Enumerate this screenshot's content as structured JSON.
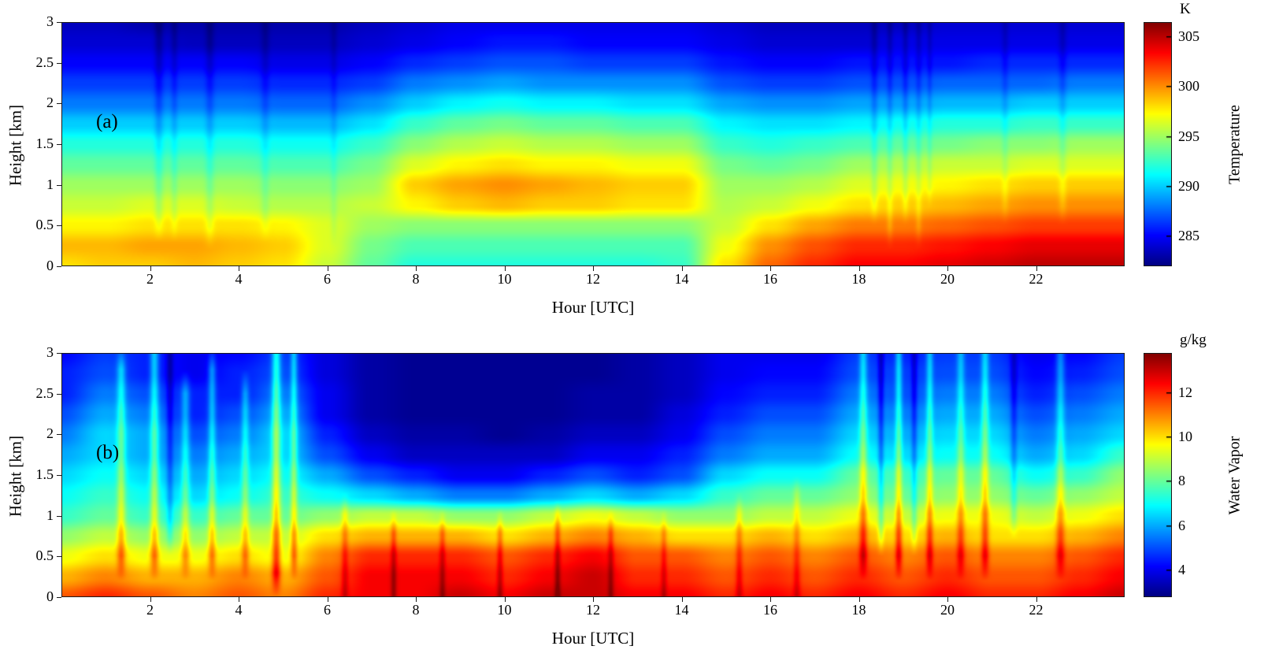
{
  "chart_data": [
    {
      "type": "heatmap",
      "panel_label": "(a)",
      "xlabel": "Hour [UTC]",
      "ylabel": "Height [km]",
      "x_range": [
        0,
        24
      ],
      "y_range": [
        0,
        3
      ],
      "x_ticks": [
        2,
        4,
        6,
        8,
        10,
        12,
        14,
        16,
        18,
        20,
        22
      ],
      "y_ticks": [
        0,
        0.5,
        1,
        1.5,
        2,
        2.5,
        3
      ],
      "colormap": "jet",
      "colorbar": {
        "unit": "K",
        "label": "Temperature",
        "ticks": [
          285,
          290,
          295,
          300,
          305
        ],
        "vmin": 282,
        "vmax": 306.5
      },
      "x": [
        0,
        1,
        2,
        3,
        4,
        5,
        6,
        7,
        8,
        9,
        10,
        11,
        12,
        13,
        14,
        15,
        16,
        17,
        18,
        19,
        20,
        21,
        22,
        23,
        24
      ],
      "y": [
        0,
        0.25,
        0.5,
        0.75,
        1,
        1.25,
        1.5,
        1.75,
        2,
        2.25,
        2.5,
        2.75,
        3
      ],
      "values": [
        [
          298,
          298.5,
          298.5,
          299,
          298.5,
          298,
          296,
          293.5,
          292,
          292,
          292,
          292,
          292,
          292,
          292.5,
          298,
          301,
          302.5,
          303.5,
          303.5,
          304,
          304.5,
          305,
          305,
          305
        ],
        [
          299,
          299,
          299.5,
          299.5,
          299,
          298.5,
          296.5,
          294,
          293,
          293,
          293,
          293,
          293,
          293,
          293,
          297,
          300,
          301.5,
          302.5,
          302.5,
          303,
          303.5,
          304,
          304,
          304
        ],
        [
          297.5,
          297.5,
          298,
          298,
          298,
          297.5,
          296.5,
          295,
          294.5,
          294.5,
          294.5,
          294.5,
          294.5,
          294.5,
          294.5,
          296,
          298,
          299.5,
          300.5,
          300.5,
          301,
          301.5,
          302,
          302,
          302
        ],
        [
          296,
          296,
          296.5,
          296.5,
          296,
          295.5,
          295.5,
          296,
          297.5,
          298.5,
          299,
          298.5,
          298.5,
          298,
          298,
          295.5,
          296,
          297,
          298,
          298.5,
          299,
          299.5,
          300,
          300,
          300
        ],
        [
          295,
          295,
          295,
          295,
          295,
          294.5,
          294.5,
          295,
          298.5,
          299.5,
          300,
          299.5,
          299,
          298.5,
          298.5,
          295,
          295,
          295.5,
          296.5,
          297,
          297.5,
          298,
          298.5,
          298.5,
          298.5
        ],
        [
          293.5,
          293.5,
          293.5,
          293.5,
          293.5,
          293,
          293,
          294,
          296.5,
          297.5,
          298,
          297.5,
          297.5,
          297,
          297,
          294,
          293.5,
          294,
          295,
          295.5,
          296,
          296,
          296.5,
          296.5,
          296.5
        ],
        [
          292,
          292,
          292,
          292,
          292,
          291.5,
          291.5,
          292.5,
          294.5,
          295.5,
          296,
          295.5,
          295.5,
          295,
          295,
          292.5,
          292,
          292.5,
          293,
          293.5,
          294,
          294.5,
          294.5,
          295,
          295
        ],
        [
          290,
          290,
          290,
          290,
          290,
          289.5,
          289.5,
          290.5,
          292.5,
          293.5,
          294,
          293.5,
          293.5,
          293,
          293,
          291,
          290.5,
          290.5,
          291,
          291.5,
          292,
          292,
          292.5,
          292.5,
          292.5
        ],
        [
          288,
          288,
          288,
          288,
          288,
          287.5,
          287.5,
          288.5,
          290,
          291,
          291.5,
          291,
          291,
          290.5,
          290.5,
          289,
          288.5,
          288.5,
          289,
          289,
          289.5,
          289.5,
          290,
          290,
          290
        ],
        [
          286.5,
          286.5,
          286.5,
          286.5,
          286.5,
          286,
          286,
          286.5,
          288,
          288.5,
          289,
          288.5,
          288.5,
          288.5,
          288.5,
          287,
          286.5,
          286.5,
          287,
          287,
          287.5,
          287.5,
          287.5,
          288,
          288
        ],
        [
          285,
          285,
          285,
          285,
          285,
          284.5,
          284.5,
          285,
          286,
          286.5,
          287,
          287,
          286.5,
          286.5,
          286.5,
          285.5,
          285,
          285,
          285.5,
          285.5,
          285.5,
          286,
          286,
          286,
          286
        ],
        [
          284,
          284,
          284,
          283.5,
          283.5,
          283.5,
          283.5,
          284,
          284.5,
          285,
          285.5,
          285.5,
          285,
          285,
          285,
          284.5,
          284,
          284,
          284,
          284.5,
          284.5,
          284.5,
          284.5,
          284.5,
          284.5
        ],
        [
          283.5,
          283.5,
          283,
          283,
          283,
          283,
          283,
          283.5,
          284,
          284.5,
          284.5,
          284.5,
          284.5,
          284.5,
          284.5,
          284,
          283.5,
          283.5,
          283.5,
          283.5,
          284,
          284,
          284,
          284,
          284
        ]
      ],
      "streaks": [
        {
          "t": 2.2,
          "w": 0.1,
          "amp": -1.3,
          "h0": 0.6,
          "h1": 3
        },
        {
          "t": 2.55,
          "w": 0.08,
          "amp": -0.9,
          "h0": 0.6,
          "h1": 3
        },
        {
          "t": 3.35,
          "w": 0.1,
          "amp": -1.1,
          "h0": 0.5,
          "h1": 3
        },
        {
          "t": 4.6,
          "w": 0.1,
          "amp": -0.9,
          "h0": 0.6,
          "h1": 3
        },
        {
          "t": 6.15,
          "w": 0.08,
          "amp": -0.7,
          "h0": 0.5,
          "h1": 3
        },
        {
          "t": 18.35,
          "w": 0.08,
          "amp": -1.2,
          "h0": 0.8,
          "h1": 3
        },
        {
          "t": 18.7,
          "w": 0.07,
          "amp": -1.0,
          "h0": 0.5,
          "h1": 3
        },
        {
          "t": 19.05,
          "w": 0.07,
          "amp": -1.1,
          "h0": 0.8,
          "h1": 3
        },
        {
          "t": 19.35,
          "w": 0.07,
          "amp": -0.9,
          "h0": 0.5,
          "h1": 3
        },
        {
          "t": 19.6,
          "w": 0.06,
          "amp": -0.8,
          "h0": 1,
          "h1": 3
        },
        {
          "t": 21.3,
          "w": 0.08,
          "amp": -0.8,
          "h0": 0.8,
          "h1": 3
        },
        {
          "t": 22.6,
          "w": 0.09,
          "amp": -1.0,
          "h0": 0.8,
          "h1": 3
        }
      ]
    },
    {
      "type": "heatmap",
      "panel_label": "(b)",
      "xlabel": "Hour [UTC]",
      "ylabel": "Height [km]",
      "x_range": [
        0,
        24
      ],
      "y_range": [
        0,
        3
      ],
      "x_ticks": [
        2,
        4,
        6,
        8,
        10,
        12,
        14,
        16,
        18,
        20,
        22
      ],
      "y_ticks": [
        0,
        0.5,
        1,
        1.5,
        2,
        2.5,
        3
      ],
      "colormap": "jet",
      "colorbar": {
        "unit": "g/kg",
        "label": "Water Vapor",
        "ticks": [
          4,
          6,
          8,
          10,
          12
        ],
        "vmin": 2.8,
        "vmax": 13.8
      },
      "x": [
        0,
        1,
        2,
        3,
        4,
        5,
        6,
        7,
        8,
        9,
        10,
        11,
        12,
        13,
        14,
        15,
        16,
        17,
        18,
        19,
        20,
        21,
        22,
        23,
        24
      ],
      "y": [
        0,
        0.25,
        0.5,
        0.75,
        1,
        1.25,
        1.5,
        1.75,
        2,
        2.25,
        2.5,
        2.75,
        3
      ],
      "values": [
        [
          11.5,
          12,
          11.5,
          11,
          11.5,
          11,
          12,
          12.5,
          12.5,
          13,
          12.5,
          13,
          13,
          12.5,
          12.5,
          12,
          12.5,
          12,
          12.5,
          12,
          12.5,
          12,
          12,
          12.5,
          13
        ],
        [
          10.5,
          11,
          10.5,
          10.5,
          11,
          10.5,
          11.5,
          12.5,
          12.5,
          12.5,
          12,
          12.5,
          13,
          12,
          12,
          11.5,
          12,
          11.5,
          12,
          11.5,
          12,
          11.5,
          11.5,
          12,
          12.5
        ],
        [
          9.5,
          10,
          9.5,
          9.5,
          10,
          9.5,
          11,
          12,
          12,
          12,
          11.5,
          12,
          12.5,
          11.5,
          11.5,
          11,
          11.5,
          11,
          11.5,
          11,
          11.5,
          11,
          11,
          11.5,
          12
        ],
        [
          8.5,
          9,
          8.5,
          8.5,
          9,
          9,
          10,
          10.5,
          10.5,
          10.5,
          10,
          10.5,
          11,
          10.5,
          10,
          10,
          10.5,
          10,
          10.5,
          10,
          10.5,
          10,
          10,
          10.5,
          11
        ],
        [
          7.5,
          8,
          7.5,
          7.5,
          8,
          8,
          8.5,
          9,
          9,
          8.5,
          8.5,
          9,
          9.5,
          9,
          8.5,
          8.5,
          9,
          9,
          9.5,
          9,
          9.5,
          9.5,
          9,
          9.5,
          10
        ],
        [
          7,
          7.5,
          7,
          6.5,
          7,
          7.5,
          7,
          6.5,
          6,
          5.5,
          5.5,
          6,
          6.5,
          6,
          6.5,
          7.5,
          8,
          8,
          8.5,
          8,
          8.5,
          8.5,
          8,
          8.5,
          9
        ],
        [
          6.5,
          7,
          6.5,
          6,
          6.5,
          7,
          6,
          5,
          4.5,
          4,
          4,
          4.5,
          5,
          4.5,
          5,
          6.5,
          7,
          7,
          8,
          7.5,
          8,
          8,
          7,
          7.5,
          8.5
        ],
        [
          6,
          6.5,
          6,
          5.5,
          6,
          6.5,
          5,
          4,
          3.5,
          3.5,
          3.5,
          3.5,
          4,
          4,
          4.5,
          5.5,
          6,
          6,
          7,
          6.5,
          7,
          7,
          6,
          6.5,
          7.5
        ],
        [
          5.5,
          6.5,
          6,
          5,
          5.5,
          6.5,
          4.5,
          3.5,
          3.2,
          3.2,
          3,
          3.2,
          3.5,
          3.5,
          4,
          5,
          5.5,
          5.5,
          6.5,
          6,
          6.5,
          6.5,
          5.5,
          6,
          6.5
        ],
        [
          5,
          6,
          5.5,
          4.5,
          5,
          6,
          4,
          3.2,
          3,
          3,
          3,
          3,
          3.2,
          3.2,
          3.8,
          4.5,
          5,
          5,
          6,
          5.5,
          6,
          6,
          5,
          5.5,
          6
        ],
        [
          4.5,
          5.5,
          5,
          4.5,
          4.5,
          5.5,
          4,
          3.2,
          3,
          3,
          3,
          3,
          3.2,
          3.2,
          3.5,
          4.2,
          4.5,
          4.5,
          5.5,
          5,
          5.5,
          5.5,
          4.5,
          5,
          5.5
        ],
        [
          4.5,
          5,
          4.5,
          4,
          4.5,
          5,
          3.8,
          3.2,
          3,
          3,
          3,
          3,
          3,
          3.2,
          3.5,
          4,
          4.2,
          4.2,
          5,
          4.8,
          5,
          5,
          4.2,
          4.5,
          5
        ],
        [
          4.2,
          4.8,
          4.5,
          4,
          4.2,
          4.8,
          3.8,
          3.2,
          3,
          3,
          3,
          3,
          3,
          3.2,
          3.5,
          4,
          4,
          4,
          4.8,
          4.5,
          4.8,
          4.8,
          4,
          4.2,
          4.8
        ]
      ],
      "streaks": [
        {
          "t": 1.35,
          "w": 0.1,
          "amp": 1.6,
          "h0": 0.5,
          "h1": 2.8
        },
        {
          "t": 2.1,
          "w": 0.1,
          "amp": 1.8,
          "h0": 0.5,
          "h1": 3
        },
        {
          "t": 2.45,
          "w": 0.08,
          "amp": -1.0,
          "h0": 0.8,
          "h1": 3
        },
        {
          "t": 2.8,
          "w": 0.1,
          "amp": 1.4,
          "h0": 0.5,
          "h1": 2.5
        },
        {
          "t": 3.4,
          "w": 0.09,
          "amp": 1.5,
          "h0": 0.5,
          "h1": 2.8
        },
        {
          "t": 4.15,
          "w": 0.09,
          "amp": 1.3,
          "h0": 0.5,
          "h1": 2.5
        },
        {
          "t": 4.85,
          "w": 0.1,
          "amp": 2.2,
          "h0": 0.3,
          "h1": 3
        },
        {
          "t": 5.25,
          "w": 0.08,
          "amp": 1.6,
          "h0": 0.5,
          "h1": 3
        },
        {
          "t": 6.4,
          "w": 0.08,
          "amp": 0.9,
          "h0": 0,
          "h1": 1
        },
        {
          "t": 7.5,
          "w": 0.07,
          "amp": 1.0,
          "h0": 0,
          "h1": 0.8
        },
        {
          "t": 8.6,
          "w": 0.07,
          "amp": 0.9,
          "h0": 0,
          "h1": 0.8
        },
        {
          "t": 9.9,
          "w": 0.07,
          "amp": 1.0,
          "h0": 0,
          "h1": 0.8
        },
        {
          "t": 11.2,
          "w": 0.07,
          "amp": 1.1,
          "h0": 0,
          "h1": 0.9
        },
        {
          "t": 12.4,
          "w": 0.07,
          "amp": 0.9,
          "h0": 0,
          "h1": 0.8
        },
        {
          "t": 13.6,
          "w": 0.07,
          "amp": 0.8,
          "h0": 0,
          "h1": 0.8
        },
        {
          "t": 15.3,
          "w": 0.08,
          "amp": 0.9,
          "h0": 0,
          "h1": 1
        },
        {
          "t": 16.6,
          "w": 0.08,
          "amp": 0.8,
          "h0": 0,
          "h1": 1.2
        },
        {
          "t": 18.1,
          "w": 0.09,
          "amp": 1.6,
          "h0": 0.5,
          "h1": 3
        },
        {
          "t": 18.5,
          "w": 0.07,
          "amp": -1.2,
          "h0": 0.8,
          "h1": 3
        },
        {
          "t": 18.9,
          "w": 0.08,
          "amp": 1.7,
          "h0": 0.5,
          "h1": 3
        },
        {
          "t": 19.25,
          "w": 0.07,
          "amp": -1.0,
          "h0": 0.8,
          "h1": 3
        },
        {
          "t": 19.6,
          "w": 0.08,
          "amp": 1.5,
          "h0": 0.5,
          "h1": 3
        },
        {
          "t": 20.3,
          "w": 0.09,
          "amp": 1.3,
          "h0": 0.5,
          "h1": 3
        },
        {
          "t": 20.85,
          "w": 0.09,
          "amp": 1.6,
          "h0": 0.5,
          "h1": 3
        },
        {
          "t": 21.5,
          "w": 0.08,
          "amp": -0.9,
          "h0": 1,
          "h1": 3
        },
        {
          "t": 22.55,
          "w": 0.1,
          "amp": 1.4,
          "h0": 0.5,
          "h1": 3
        }
      ]
    }
  ]
}
